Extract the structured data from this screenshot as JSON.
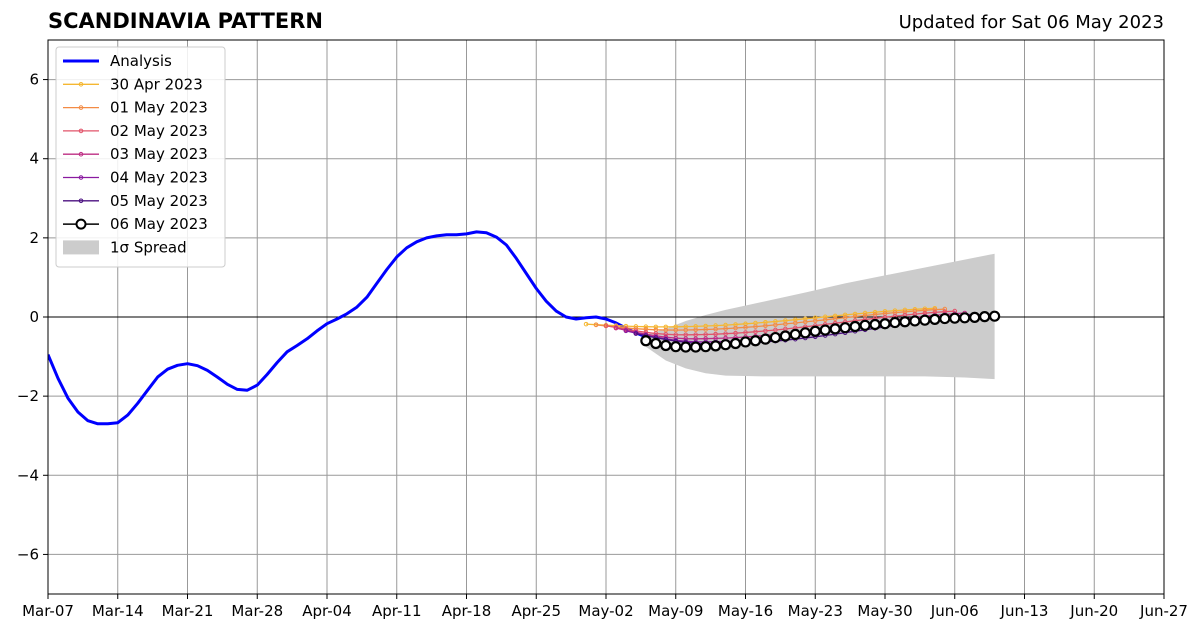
{
  "header": {
    "title": "SCANDINAVIA PATTERN",
    "updated": "Updated for Sat 06 May 2023"
  },
  "chart_data": {
    "type": "line",
    "title": "SCANDINAVIA PATTERN",
    "subtitle": "Updated for Sat 06 May 2023",
    "xlabel": "",
    "ylabel": "",
    "ylim": [
      -7,
      7
    ],
    "xlim": [
      "2023-03-07",
      "2023-06-27"
    ],
    "x_ticks": [
      "Mar-07",
      "Mar-14",
      "Mar-21",
      "Mar-28",
      "Apr-04",
      "Apr-11",
      "Apr-18",
      "Apr-25",
      "May-02",
      "May-09",
      "May-16",
      "May-23",
      "May-30",
      "Jun-06",
      "Jun-13",
      "Jun-20",
      "Jun-27"
    ],
    "y_ticks": [
      "6",
      "4",
      "2",
      "0",
      "−2",
      "−4",
      "−6"
    ],
    "y_tick_values": [
      6,
      4,
      2,
      0,
      -2,
      -4,
      -6
    ],
    "grid": true,
    "legend_position": "top-left",
    "legend": [
      "Analysis",
      "30 Apr 2023",
      "01 May 2023",
      "02 May 2023",
      "03 May 2023",
      "04 May 2023",
      "05 May 2023",
      "06 May 2023",
      "1σ Spread"
    ],
    "series": [
      {
        "name": "Analysis",
        "color": "#0000ff",
        "x": [
          "2023-03-07",
          "2023-03-08",
          "2023-03-09",
          "2023-03-10",
          "2023-03-11",
          "2023-03-12",
          "2023-03-13",
          "2023-03-14",
          "2023-03-15",
          "2023-03-16",
          "2023-03-17",
          "2023-03-18",
          "2023-03-19",
          "2023-03-20",
          "2023-03-21",
          "2023-03-22",
          "2023-03-23",
          "2023-03-24",
          "2023-03-25",
          "2023-03-26",
          "2023-03-27",
          "2023-03-28",
          "2023-03-29",
          "2023-03-30",
          "2023-03-31",
          "2023-04-01",
          "2023-04-02",
          "2023-04-03",
          "2023-04-04",
          "2023-04-05",
          "2023-04-06",
          "2023-04-07",
          "2023-04-08",
          "2023-04-09",
          "2023-04-10",
          "2023-04-11",
          "2023-04-12",
          "2023-04-13",
          "2023-04-14",
          "2023-04-15",
          "2023-04-16",
          "2023-04-17",
          "2023-04-18",
          "2023-04-19",
          "2023-04-20",
          "2023-04-21",
          "2023-04-22",
          "2023-04-23",
          "2023-04-24",
          "2023-04-25",
          "2023-04-26",
          "2023-04-27",
          "2023-04-28",
          "2023-04-29",
          "2023-04-30",
          "2023-05-01",
          "2023-05-02",
          "2023-05-03",
          "2023-05-04",
          "2023-05-05",
          "2023-05-06"
        ],
        "values": [
          -0.95,
          -1.55,
          -2.05,
          -2.4,
          -2.62,
          -2.7,
          -2.7,
          -2.67,
          -2.48,
          -2.18,
          -1.85,
          -1.52,
          -1.32,
          -1.22,
          -1.18,
          -1.23,
          -1.35,
          -1.52,
          -1.7,
          -1.83,
          -1.85,
          -1.72,
          -1.45,
          -1.15,
          -0.88,
          -0.72,
          -0.55,
          -0.35,
          -0.17,
          -0.05,
          0.08,
          0.25,
          0.5,
          0.85,
          1.2,
          1.52,
          1.75,
          1.9,
          2.0,
          2.05,
          2.08,
          2.08,
          2.1,
          2.15,
          2.13,
          2.02,
          1.82,
          1.48,
          1.1,
          0.72,
          0.4,
          0.15,
          0.0,
          -0.05,
          -0.02,
          0.0,
          -0.05,
          -0.15,
          -0.28,
          -0.4,
          -0.5
        ]
      },
      {
        "name": "30 Apr 2023",
        "color": "#f5b731",
        "start": "2023-04-30",
        "end": "2023-06-04",
        "start_value": -0.18,
        "min_value": -0.25,
        "end_value": 0.22
      },
      {
        "name": "01 May 2023",
        "color": "#f38b45",
        "start": "2023-05-01",
        "end": "2023-06-05",
        "start_value": -0.2,
        "min_value": -0.33,
        "end_value": 0.2
      },
      {
        "name": "02 May 2023",
        "color": "#e2536a",
        "start": "2023-05-02",
        "end": "2023-06-06",
        "start_value": -0.22,
        "min_value": -0.45,
        "end_value": 0.15
      },
      {
        "name": "03 May 2023",
        "color": "#bd2d83",
        "start": "2023-05-03",
        "end": "2023-06-07",
        "start_value": -0.28,
        "min_value": -0.55,
        "end_value": 0.1
      },
      {
        "name": "04 May 2023",
        "color": "#8a1aa0",
        "start": "2023-05-04",
        "end": "2023-06-08",
        "start_value": -0.35,
        "min_value": -0.63,
        "end_value": 0.07
      },
      {
        "name": "05 May 2023",
        "color": "#4b1181",
        "start": "2023-05-05",
        "end": "2023-06-09",
        "start_value": -0.42,
        "min_value": -0.68,
        "end_value": 0.05
      },
      {
        "name": "06 May 2023",
        "color": "#000000",
        "x": [
          "2023-05-06",
          "2023-05-07",
          "2023-05-08",
          "2023-05-09",
          "2023-05-10",
          "2023-05-11",
          "2023-05-12",
          "2023-05-13",
          "2023-05-14",
          "2023-05-15",
          "2023-05-16",
          "2023-05-17",
          "2023-05-18",
          "2023-05-19",
          "2023-05-20",
          "2023-05-21",
          "2023-05-22",
          "2023-05-23",
          "2023-05-24",
          "2023-05-25",
          "2023-05-26",
          "2023-05-27",
          "2023-05-28",
          "2023-05-29",
          "2023-05-30",
          "2023-05-31",
          "2023-06-01",
          "2023-06-02",
          "2023-06-03",
          "2023-06-04",
          "2023-06-05",
          "2023-06-06",
          "2023-06-07",
          "2023-06-08",
          "2023-06-09",
          "2023-06-10"
        ],
        "values": [
          -0.6,
          -0.67,
          -0.72,
          -0.75,
          -0.76,
          -0.76,
          -0.75,
          -0.73,
          -0.7,
          -0.67,
          -0.63,
          -0.6,
          -0.56,
          -0.52,
          -0.48,
          -0.44,
          -0.4,
          -0.36,
          -0.33,
          -0.3,
          -0.27,
          -0.24,
          -0.21,
          -0.19,
          -0.17,
          -0.14,
          -0.12,
          -0.1,
          -0.08,
          -0.06,
          -0.04,
          -0.03,
          -0.02,
          -0.01,
          0.01,
          0.02
        ]
      }
    ],
    "spread": {
      "name": "1σ Spread",
      "color": "#cccccc",
      "x": [
        "2023-05-06",
        "2023-05-08",
        "2023-05-10",
        "2023-05-12",
        "2023-05-14",
        "2023-05-18",
        "2023-05-22",
        "2023-05-26",
        "2023-05-30",
        "2023-06-03",
        "2023-06-07",
        "2023-06-10"
      ],
      "upper": [
        -0.45,
        -0.3,
        -0.1,
        0.05,
        0.18,
        0.4,
        0.62,
        0.85,
        1.05,
        1.25,
        1.45,
        1.6
      ],
      "lower": [
        -0.75,
        -1.1,
        -1.3,
        -1.42,
        -1.48,
        -1.5,
        -1.5,
        -1.5,
        -1.5,
        -1.5,
        -1.53,
        -1.57
      ]
    }
  }
}
